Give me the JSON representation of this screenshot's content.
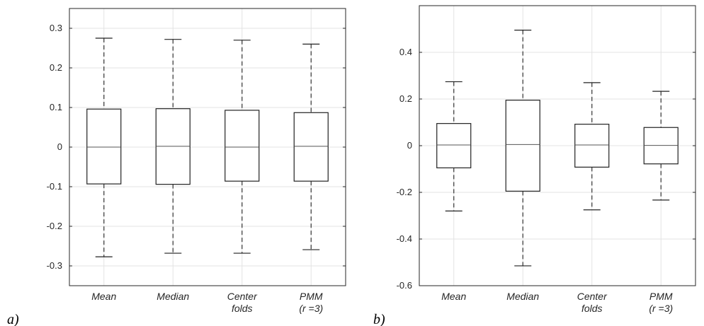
{
  "chart_data": [
    {
      "type": "box",
      "panel_label": "a)",
      "categories": [
        [
          "Mean"
        ],
        [
          "Median"
        ],
        [
          "Center",
          "folds"
        ],
        [
          "PMM",
          "(r =3)"
        ]
      ],
      "ylim": [
        -0.35,
        0.35
      ],
      "yticks": [
        -0.3,
        -0.2,
        -0.1,
        0,
        0.1,
        0.2,
        0.3
      ],
      "ytick_labels": [
        "-0.3",
        "-0.2",
        "-0.1",
        "0",
        "0.1",
        "0.2",
        "0.3"
      ],
      "grid": true,
      "boxes": [
        {
          "whisker_low": -0.277,
          "q1": -0.093,
          "median": 0.0,
          "q3": 0.096,
          "whisker_high": 0.275
        },
        {
          "whisker_low": -0.268,
          "q1": -0.094,
          "median": 0.002,
          "q3": 0.097,
          "whisker_high": 0.272
        },
        {
          "whisker_low": -0.268,
          "q1": -0.086,
          "median": 0.0,
          "q3": 0.093,
          "whisker_high": 0.27
        },
        {
          "whisker_low": -0.259,
          "q1": -0.086,
          "median": 0.002,
          "q3": 0.087,
          "whisker_high": 0.26
        }
      ]
    },
    {
      "type": "box",
      "panel_label": "b)",
      "categories": [
        [
          "Mean"
        ],
        [
          "Median"
        ],
        [
          "Center",
          "folds"
        ],
        [
          "PMM",
          "(r =3)"
        ]
      ],
      "ylim": [
        -0.6,
        0.6
      ],
      "yticks": [
        -0.6,
        -0.4,
        -0.2,
        0,
        0.2,
        0.4
      ],
      "ytick_labels": [
        "-0.6",
        "-0.4",
        "-0.2",
        "0",
        "0.2",
        "0.4"
      ],
      "grid": true,
      "boxes": [
        {
          "whisker_low": -0.28,
          "q1": -0.095,
          "median": 0.003,
          "q3": 0.095,
          "whisker_high": 0.274
        },
        {
          "whisker_low": -0.515,
          "q1": -0.195,
          "median": 0.005,
          "q3": 0.195,
          "whisker_high": 0.495
        },
        {
          "whisker_low": -0.275,
          "q1": -0.092,
          "median": 0.003,
          "q3": 0.092,
          "whisker_high": 0.27
        },
        {
          "whisker_low": -0.233,
          "q1": -0.078,
          "median": 0.001,
          "q3": 0.078,
          "whisker_high": 0.233
        }
      ]
    }
  ]
}
